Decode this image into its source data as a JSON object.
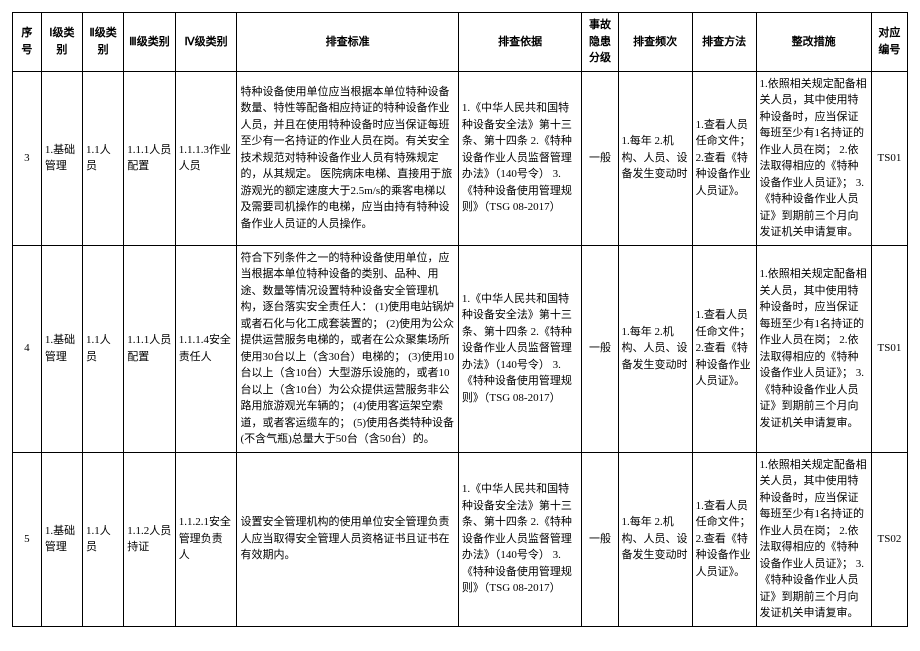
{
  "columns": {
    "seq": "序号",
    "l1": "Ⅰ级类别",
    "l2": "Ⅱ级类别",
    "l3": "Ⅲ级类别",
    "l4": "Ⅳ级类别",
    "std": "排查标准",
    "basis": "排查依据",
    "level": "事故隐患分级",
    "freq": "排查频次",
    "meth": "排查方法",
    "rect": "整改措施",
    "code": "对应编号"
  },
  "rows": [
    {
      "seq": "3",
      "l1": "1.基础管理",
      "l2": "1.1人员",
      "l3": "1.1.1人员配置",
      "l4": "1.1.1.3作业人员",
      "std": "特种设备使用单位应当根据本单位特种设备数量、特性等配备相应持证的特种设备作业人员，并且在使用特种设备时应当保证每班至少有一名持证的作业人员在岗。有关安全技术规范对特种设备作业人员有特殊规定的，从其规定。\n医院病床电梯、直接用于旅游观光的额定速度大于2.5m/s的乘客电梯以及需要司机操作的电梯，应当由持有特种设备作业人员证的人员操作。",
      "basis": "1.《中华人民共和国特种设备安全法》第十三条、第十四条\n2.《特种设备作业人员监督管理办法》（140号令）\n3.《特种设备使用管理规则》（TSG 08-2017）",
      "level": "一般",
      "freq": "1.每年\n2.机构、人员、设备发生变动时",
      "meth": "1.查看人员任命文件；\n2.查看《特种设备作业人员证》。",
      "rect": "1.依照相关规定配备相关人员，其中使用特种设备时，应当保证每班至少有1名持证的作业人员在岗；\n2.依法取得相应的《特种设备作业人员证》；\n3.《特种设备作业人员证》到期前三个月向发证机关申请复审。",
      "code": "TS01"
    },
    {
      "seq": "4",
      "l1": "1.基础管理",
      "l2": "1.1人员",
      "l3": "1.1.1人员配置",
      "l4": "1.1.1.4安全责任人",
      "std": "符合下列条件之一的特种设备使用单位，应当根据本单位特种设备的类别、品种、用途、数量等情况设置特种设备安全管理机构，逐台落实安全责任人：\n(1)使用电站锅炉或者石化与化工成套装置的；\n(2)使用为公众提供运营服务电梯的，或者在公众聚集场所使用30台以上（含30台）电梯的；\n(3)使用10台以上（含10台）大型游乐设施的，或者10台以上（含10台）为公众提供运营服务非公路用旅游观光车辆的；\n(4)使用客运架空索道，或者客运缆车的；\n(5)使用各类特种设备(不含气瓶)总量大于50台（含50台）的。",
      "basis": "1.《中华人民共和国特种设备安全法》第十三条、第十四条\n2.《特种设备作业人员监督管理办法》（140号令）\n3.《特种设备使用管理规则》（TSG 08-2017）",
      "level": "一般",
      "freq": "1.每年\n2.机构、人员、设备发生变动时",
      "meth": "1.查看人员任命文件；\n2.查看《特种设备作业人员证》。",
      "rect": "1.依照相关规定配备相关人员，其中使用特种设备时，应当保证每班至少有1名持证的作业人员在岗；\n2.依法取得相应的《特种设备作业人员证》；\n3.《特种设备作业人员证》到期前三个月向发证机关申请复审。",
      "code": "TS01"
    },
    {
      "seq": "5",
      "l1": "1.基础管理",
      "l2": "1.1人员",
      "l3": "1.1.2人员持证",
      "l4": "1.1.2.1安全管理负责人",
      "std": "设置安全管理机构的使用单位安全管理负责人应当取得安全管理人员资格证书且证书在有效期内。",
      "basis": "1.《中华人民共和国特种设备安全法》第十三条、第十四条\n2.《特种设备作业人员监督管理办法》（140号令）\n3.《特种设备使用管理规则》（TSG 08-2017）",
      "level": "一般",
      "freq": "1.每年\n2.机构、人员、设备发生变动时",
      "meth": "1.查看人员任命文件；\n2.查看《特种设备作业人员证》。",
      "rect": "1.依照相关规定配备相关人员，其中使用特种设备时，应当保证每班至少有1名持证的作业人员在岗；\n2.依法取得相应的《特种设备作业人员证》；\n3.《特种设备作业人员证》到期前三个月向发证机关申请复审。",
      "code": "TS02"
    }
  ]
}
